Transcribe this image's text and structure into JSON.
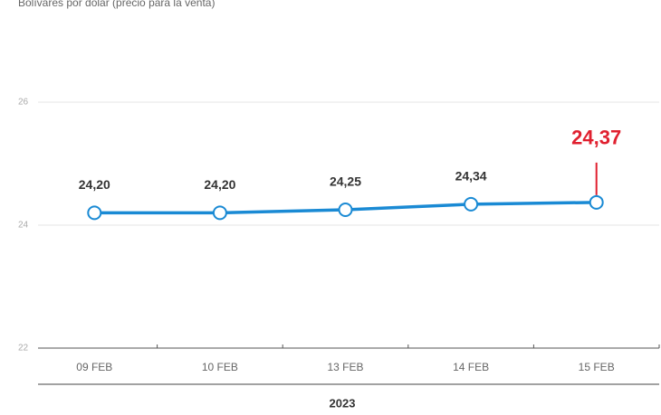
{
  "chart_data": {
    "type": "line",
    "subtitle": "Bolívares por dólar (precio para la venta)",
    "categories": [
      "09 FEB",
      "10 FEB",
      "13 FEB",
      "14 FEB",
      "15 FEB"
    ],
    "xlabel": "2023",
    "series": [
      {
        "name": "Bolívares por dólar",
        "color": "#1a8ad4",
        "values": [
          24.2,
          24.2,
          24.25,
          24.34,
          24.37
        ],
        "value_labels": [
          "24,20",
          "24,20",
          "24,25",
          "24,34",
          "24,37"
        ]
      }
    ],
    "highlight_color": "#e0202f",
    "ylim": [
      22,
      26
    ],
    "yticks": [
      22,
      24,
      26
    ],
    "grid": true
  }
}
